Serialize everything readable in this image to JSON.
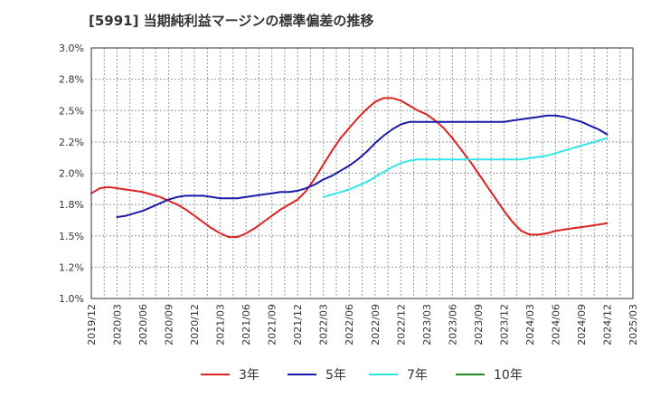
{
  "chart_data": {
    "type": "line",
    "title": "[5991]  当期純利益マージンの標準偏差の推移",
    "xlabel": "",
    "ylabel": "",
    "ylim": [
      1.0,
      3.0
    ],
    "y_ticks": [
      "1.0%",
      "1.2%",
      "1.5%",
      "1.8%",
      "2.0%",
      "2.2%",
      "2.5%",
      "2.8%",
      "3.0%"
    ],
    "x_ticks": [
      "2019/12",
      "2020/03",
      "2020/06",
      "2020/09",
      "2020/12",
      "2021/03",
      "2021/06",
      "2021/09",
      "2021/12",
      "2022/03",
      "2022/06",
      "2022/09",
      "2022/12",
      "2023/03",
      "2023/06",
      "2023/09",
      "2023/12",
      "2024/03",
      "2024/06",
      "2024/09",
      "2024/12",
      "2025/03"
    ],
    "grid": true,
    "legend_position": "bottom",
    "series": [
      {
        "name": "3年",
        "color": "#dd2222",
        "values": [
          [
            "2019/12",
            1.84
          ],
          [
            "2020/01",
            1.88
          ],
          [
            "2020/02",
            1.89
          ],
          [
            "2020/03",
            1.88
          ],
          [
            "2020/04",
            1.87
          ],
          [
            "2020/05",
            1.86
          ],
          [
            "2020/06",
            1.85
          ],
          [
            "2020/07",
            1.83
          ],
          [
            "2020/08",
            1.81
          ],
          [
            "2020/09",
            1.78
          ],
          [
            "2020/10",
            1.75
          ],
          [
            "2020/11",
            1.71
          ],
          [
            "2020/12",
            1.66
          ],
          [
            "2021/01",
            1.61
          ],
          [
            "2021/02",
            1.56
          ],
          [
            "2021/03",
            1.52
          ],
          [
            "2021/04",
            1.49
          ],
          [
            "2021/05",
            1.49
          ],
          [
            "2021/06",
            1.52
          ],
          [
            "2021/07",
            1.56
          ],
          [
            "2021/08",
            1.61
          ],
          [
            "2021/09",
            1.66
          ],
          [
            "2021/10",
            1.71
          ],
          [
            "2021/11",
            1.75
          ],
          [
            "2021/12",
            1.79
          ],
          [
            "2022/01",
            1.86
          ],
          [
            "2022/02",
            1.96
          ],
          [
            "2022/03",
            2.07
          ],
          [
            "2022/04",
            2.18
          ],
          [
            "2022/05",
            2.28
          ],
          [
            "2022/06",
            2.36
          ],
          [
            "2022/07",
            2.44
          ],
          [
            "2022/08",
            2.51
          ],
          [
            "2022/09",
            2.57
          ],
          [
            "2022/10",
            2.6
          ],
          [
            "2022/11",
            2.6
          ],
          [
            "2022/12",
            2.58
          ],
          [
            "2023/01",
            2.54
          ],
          [
            "2023/02",
            2.5
          ],
          [
            "2023/03",
            2.47
          ],
          [
            "2023/04",
            2.42
          ],
          [
            "2023/05",
            2.36
          ],
          [
            "2023/06",
            2.28
          ],
          [
            "2023/07",
            2.19
          ],
          [
            "2023/08",
            2.1
          ],
          [
            "2023/09",
            2.0
          ],
          [
            "2023/10",
            1.9
          ],
          [
            "2023/11",
            1.8
          ],
          [
            "2023/12",
            1.7
          ],
          [
            "2024/01",
            1.61
          ],
          [
            "2024/02",
            1.54
          ],
          [
            "2024/03",
            1.51
          ],
          [
            "2024/04",
            1.51
          ],
          [
            "2024/05",
            1.52
          ],
          [
            "2024/06",
            1.54
          ],
          [
            "2024/07",
            1.55
          ],
          [
            "2024/08",
            1.56
          ],
          [
            "2024/09",
            1.57
          ],
          [
            "2024/10",
            1.58
          ],
          [
            "2024/11",
            1.59
          ],
          [
            "2024/12",
            1.6
          ]
        ]
      },
      {
        "name": "5年",
        "color": "#1a1aaa",
        "values": [
          [
            "2020/03",
            1.65
          ],
          [
            "2020/04",
            1.66
          ],
          [
            "2020/05",
            1.68
          ],
          [
            "2020/06",
            1.7
          ],
          [
            "2020/07",
            1.73
          ],
          [
            "2020/08",
            1.76
          ],
          [
            "2020/09",
            1.79
          ],
          [
            "2020/10",
            1.81
          ],
          [
            "2020/11",
            1.82
          ],
          [
            "2020/12",
            1.82
          ],
          [
            "2021/01",
            1.82
          ],
          [
            "2021/02",
            1.81
          ],
          [
            "2021/03",
            1.8
          ],
          [
            "2021/04",
            1.8
          ],
          [
            "2021/05",
            1.8
          ],
          [
            "2021/06",
            1.81
          ],
          [
            "2021/07",
            1.82
          ],
          [
            "2021/08",
            1.83
          ],
          [
            "2021/09",
            1.84
          ],
          [
            "2021/10",
            1.85
          ],
          [
            "2021/11",
            1.85
          ],
          [
            "2021/12",
            1.86
          ],
          [
            "2022/01",
            1.88
          ],
          [
            "2022/02",
            1.91
          ],
          [
            "2022/03",
            1.95
          ],
          [
            "2022/04",
            1.98
          ],
          [
            "2022/05",
            2.02
          ],
          [
            "2022/06",
            2.06
          ],
          [
            "2022/07",
            2.11
          ],
          [
            "2022/08",
            2.17
          ],
          [
            "2022/09",
            2.24
          ],
          [
            "2022/10",
            2.3
          ],
          [
            "2022/11",
            2.35
          ],
          [
            "2022/12",
            2.39
          ],
          [
            "2023/01",
            2.41
          ],
          [
            "2023/02",
            2.41
          ],
          [
            "2023/03",
            2.41
          ],
          [
            "2023/04",
            2.41
          ],
          [
            "2023/05",
            2.41
          ],
          [
            "2023/06",
            2.41
          ],
          [
            "2023/07",
            2.41
          ],
          [
            "2023/08",
            2.41
          ],
          [
            "2023/09",
            2.41
          ],
          [
            "2023/10",
            2.41
          ],
          [
            "2023/11",
            2.41
          ],
          [
            "2023/12",
            2.41
          ],
          [
            "2024/01",
            2.42
          ],
          [
            "2024/02",
            2.43
          ],
          [
            "2024/03",
            2.44
          ],
          [
            "2024/04",
            2.45
          ],
          [
            "2024/05",
            2.46
          ],
          [
            "2024/06",
            2.46
          ],
          [
            "2024/07",
            2.45
          ],
          [
            "2024/08",
            2.43
          ],
          [
            "2024/09",
            2.41
          ],
          [
            "2024/10",
            2.38
          ],
          [
            "2024/11",
            2.35
          ],
          [
            "2024/12",
            2.31
          ]
        ]
      },
      {
        "name": "7年",
        "color": "#33e6e6",
        "values": [
          [
            "2022/03",
            1.81
          ],
          [
            "2022/04",
            1.83
          ],
          [
            "2022/05",
            1.85
          ],
          [
            "2022/06",
            1.87
          ],
          [
            "2022/07",
            1.9
          ],
          [
            "2022/08",
            1.93
          ],
          [
            "2022/09",
            1.97
          ],
          [
            "2022/10",
            2.01
          ],
          [
            "2022/11",
            2.05
          ],
          [
            "2022/12",
            2.08
          ],
          [
            "2023/01",
            2.1
          ],
          [
            "2023/02",
            2.11
          ],
          [
            "2023/03",
            2.11
          ],
          [
            "2023/04",
            2.11
          ],
          [
            "2023/05",
            2.11
          ],
          [
            "2023/06",
            2.11
          ],
          [
            "2023/07",
            2.11
          ],
          [
            "2023/08",
            2.11
          ],
          [
            "2023/09",
            2.11
          ],
          [
            "2023/10",
            2.11
          ],
          [
            "2023/11",
            2.11
          ],
          [
            "2023/12",
            2.11
          ],
          [
            "2024/01",
            2.11
          ],
          [
            "2024/02",
            2.11
          ],
          [
            "2024/03",
            2.12
          ],
          [
            "2024/04",
            2.13
          ],
          [
            "2024/05",
            2.14
          ],
          [
            "2024/06",
            2.16
          ],
          [
            "2024/07",
            2.18
          ],
          [
            "2024/08",
            2.2
          ],
          [
            "2024/09",
            2.22
          ],
          [
            "2024/10",
            2.24
          ],
          [
            "2024/11",
            2.26
          ],
          [
            "2024/12",
            2.28
          ]
        ]
      },
      {
        "name": "10年",
        "color": "#228822",
        "values": []
      }
    ]
  }
}
